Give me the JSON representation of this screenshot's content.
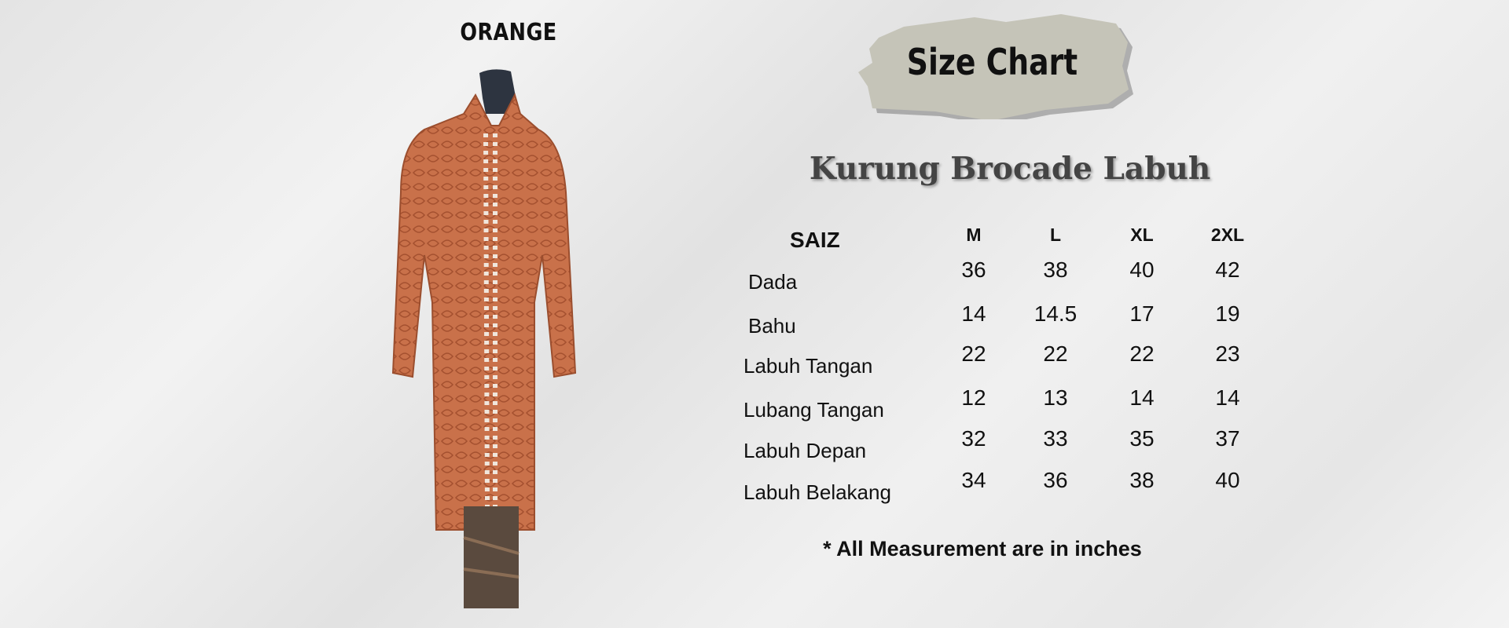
{
  "color_label": "ORANGE",
  "badge": {
    "text": "Size Chart",
    "color": "#c5c4b8"
  },
  "product_title": "Kurung Brocade Labuh",
  "table": {
    "corner": "SAIZ",
    "sizes": [
      "M",
      "L",
      "XL",
      "2XL"
    ],
    "rows": [
      {
        "label": "Dada",
        "values": [
          "36",
          "38",
          "40",
          "42"
        ]
      },
      {
        "label": "Bahu",
        "values": [
          "14",
          "14.5",
          "17",
          "19"
        ]
      },
      {
        "label": "Labuh Tangan",
        "values": [
          "22",
          "22",
          "22",
          "23"
        ]
      },
      {
        "label": "Lubang Tangan",
        "values": [
          "12",
          "13",
          "14",
          "14"
        ]
      },
      {
        "label": "Labuh Depan",
        "values": [
          "32",
          "33",
          "35",
          "37"
        ]
      },
      {
        "label": "Labuh Belakang",
        "values": [
          "34",
          "36",
          "38",
          "40"
        ]
      }
    ]
  },
  "footnote": "*  All Measurement are in inches",
  "colors": {
    "garment": "#c9714a",
    "mannequin": "#2d3440"
  }
}
